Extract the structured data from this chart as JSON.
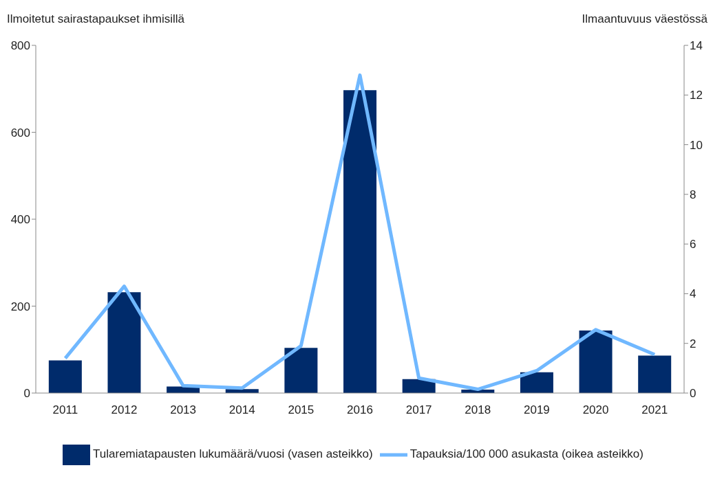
{
  "chart_data": {
    "type": "bar",
    "ylabel": "Ilmoitetut sairastapaukset ihmisillä",
    "y2label": "Ilmaantuvuus väestössä",
    "categories": [
      "2011",
      "2012",
      "2013",
      "2014",
      "2015",
      "2016",
      "2017",
      "2018",
      "2019",
      "2020",
      "2021"
    ],
    "series": [
      {
        "name": "Tularemiatapausten lukumäärä/vuosi (vasen asteikko)",
        "color": "#002b6b",
        "values": [
          75,
          232,
          15,
          9,
          104,
          697,
          32,
          8,
          48,
          144,
          86
        ]
      },
      {
        "name": "Tapauksia/100 000 asukasta  (oikea asteikko)",
        "type": "line",
        "axis": "y2",
        "color": "#70b8ff",
        "values": [
          1.4,
          4.3,
          0.3,
          0.2,
          1.9,
          12.8,
          0.6,
          0.15,
          0.9,
          2.55,
          1.55
        ]
      }
    ],
    "ylim": [
      0,
      800
    ],
    "yticks": [
      0,
      200,
      400,
      600,
      800
    ],
    "y2lim": [
      0,
      14
    ],
    "y2ticks": [
      0,
      2,
      4,
      6,
      8,
      10,
      12,
      14
    ],
    "legend": "bottom",
    "marker": "none",
    "line_style": "solid"
  }
}
